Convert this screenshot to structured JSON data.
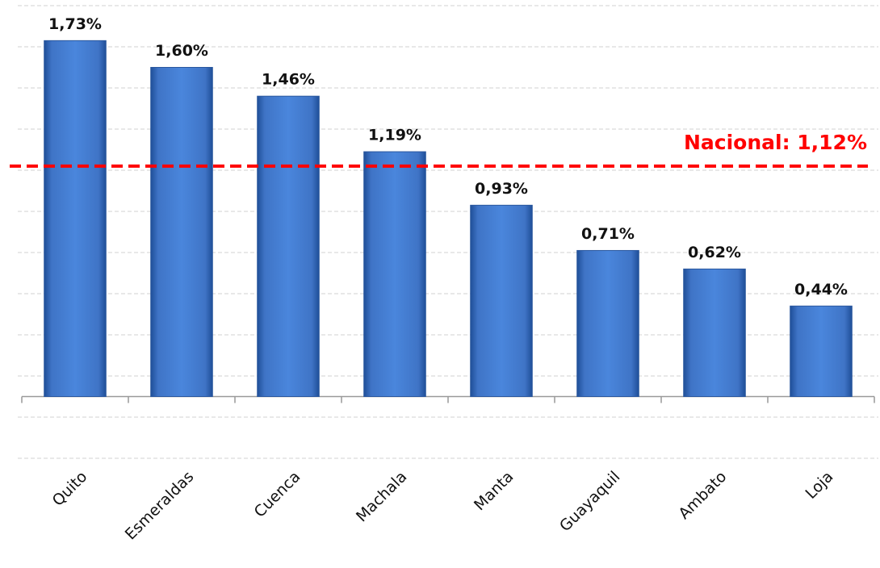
{
  "chart_data": {
    "type": "bar",
    "categories": [
      "Quito",
      "Esmeraldas",
      "Cuenca",
      "Machala",
      "Manta",
      "Guayaquil",
      "Ambato",
      "Loja"
    ],
    "values": [
      1.73,
      1.6,
      1.46,
      1.19,
      0.93,
      0.71,
      0.62,
      0.44
    ],
    "value_labels": [
      "1,73%",
      "1,60%",
      "1,46%",
      "1,19%",
      "0,93%",
      "0,71%",
      "0,62%",
      "0,44%"
    ],
    "color": "#4a7fd0",
    "ylim": [
      -0.3,
      1.9
    ],
    "yticks": [
      -0.3,
      -0.1,
      0.1,
      0.3,
      0.5,
      0.7,
      0.9,
      1.1,
      1.3,
      1.5,
      1.7,
      1.9
    ],
    "grid": true,
    "reference_line": {
      "value": 1.12,
      "label": "Nacional: 1,12%",
      "color": "#ff0000"
    }
  }
}
